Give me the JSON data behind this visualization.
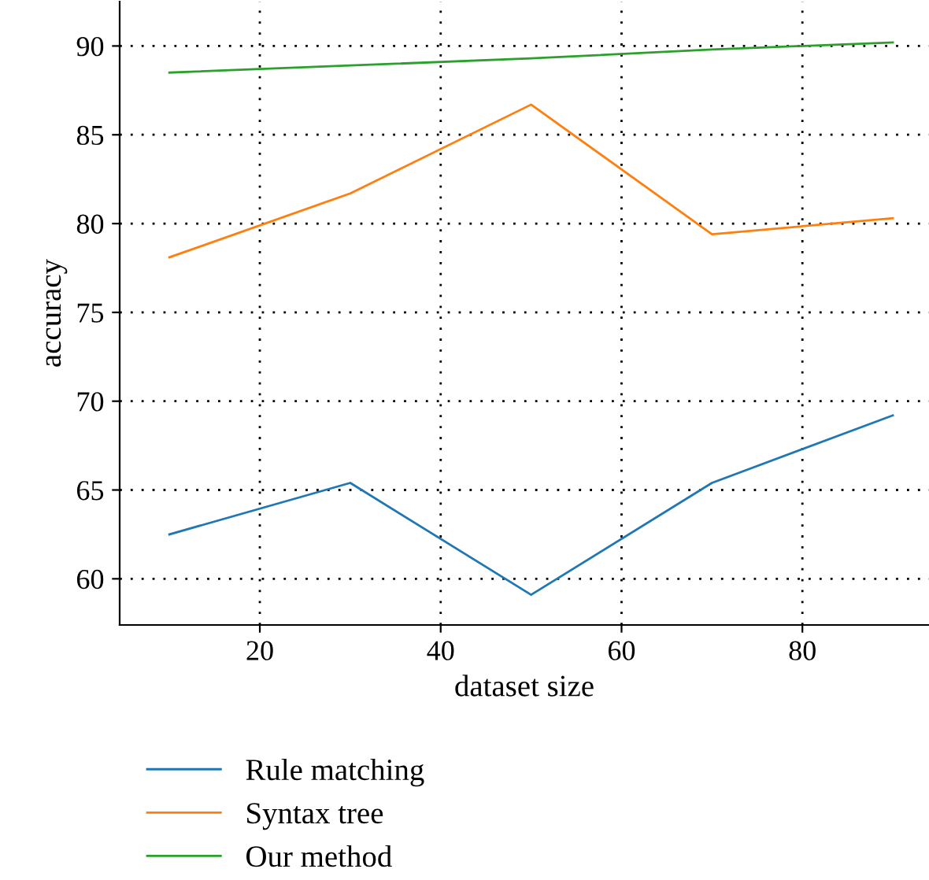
{
  "chart_data": {
    "type": "line",
    "xlabel": "dataset size",
    "ylabel": "accuracy",
    "x": [
      10,
      30,
      50,
      70,
      90
    ],
    "series": [
      {
        "name": "Rule matching",
        "color": "#1f77b4",
        "values": [
          62.5,
          65.4,
          59.1,
          65.4,
          69.2
        ]
      },
      {
        "name": "Syntax tree",
        "color": "#ff7f0e",
        "values": [
          78.1,
          81.7,
          86.7,
          79.4,
          80.3
        ]
      },
      {
        "name": "Our method",
        "color": "#2ca02c",
        "values": [
          88.5,
          88.9,
          89.3,
          89.8,
          90.2
        ]
      }
    ],
    "xlim": [
      4.5,
      94
    ],
    "ylim": [
      57.4,
      92.5
    ],
    "xticks": [
      20,
      40,
      60,
      80
    ],
    "yticks": [
      60,
      65,
      70,
      75,
      80,
      85,
      90
    ],
    "grid": true,
    "legend": "bottom",
    "marker": "none"
  }
}
